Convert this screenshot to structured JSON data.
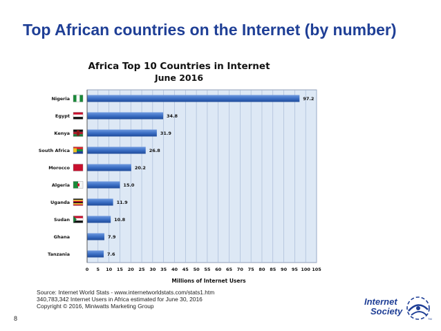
{
  "slide": {
    "title": "Top African countries on the Internet (by number)",
    "page_number": "8"
  },
  "source_lines": [
    "Source: Internet World Stats - www.internetworldstats.com/stats1.htm",
    "340,783,342 Internet Users in Africa estimated for June 30, 2016",
    "Copyright © 2016, Miniwatts Marketing Group"
  ],
  "logo": {
    "line1": "Internet",
    "line2": "Society",
    "mark": "TM"
  },
  "colors": {
    "title": "#1f3f96",
    "bar": "#3b6fc4",
    "bar_dark": "#1f4a9a",
    "plot_bg": "#dde8f5"
  },
  "chart_data": {
    "type": "bar",
    "orientation": "horizontal",
    "title": "Africa Top 10 Countries in Internet",
    "subtitle": "June 2016",
    "xlabel": "Millions of Internet Users",
    "ylabel": "",
    "xlim": [
      0,
      105
    ],
    "xticks": [
      0,
      5,
      10,
      15,
      20,
      25,
      30,
      35,
      40,
      45,
      50,
      55,
      60,
      65,
      70,
      75,
      80,
      85,
      90,
      95,
      100,
      105
    ],
    "grid": true,
    "categories": [
      "Nigeria",
      "Egypt",
      "Kenya",
      "South Africa",
      "Morocco",
      "Algeria",
      "Uganda",
      "Sudan",
      "Ghana",
      "Tanzania"
    ],
    "values": [
      97.2,
      34.8,
      31.9,
      26.8,
      20.2,
      15.0,
      11.9,
      10.8,
      7.9,
      7.6
    ],
    "value_labels": [
      "97.2",
      "34.8",
      "31.9",
      "26.8",
      "20.2",
      "15.0",
      "11.9",
      "10.8",
      "7.9",
      "7.6"
    ],
    "flags": [
      "nigeria-flag-icon",
      "egypt-flag-icon",
      "kenya-flag-icon",
      "south-africa-flag-icon",
      "morocco-flag-icon",
      "algeria-flag-icon",
      "uganda-flag-icon",
      "sudan-flag-icon",
      "",
      ""
    ]
  }
}
